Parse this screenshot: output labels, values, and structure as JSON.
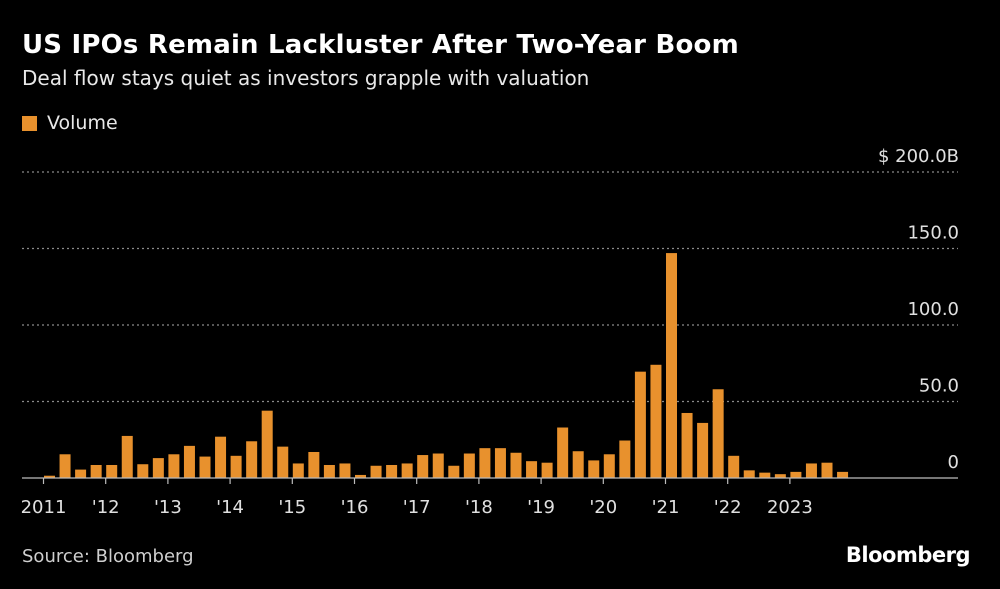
{
  "header": {
    "title": "US IPOs Remain Lackluster After Two-Year Boom",
    "subtitle": "Deal flow stays quiet as investors grapple with valuation"
  },
  "legend": {
    "label": "Volume"
  },
  "footer": {
    "source": "Source: Bloomberg",
    "brand": "Bloomberg"
  },
  "colors": {
    "bar": "#e8912d",
    "background": "#000000",
    "grid": "#8a8a8a",
    "axis": "#bdbdbd"
  },
  "chart_data": {
    "type": "bar",
    "title": "US IPOs Remain Lackluster After Two-Year Boom",
    "subtitle": "Deal flow stays quiet as investors grapple with valuation",
    "series": [
      {
        "name": "Volume",
        "unit": "$B",
        "values": [
          1.5,
          15.5,
          5.5,
          8.5,
          8.5,
          27.5,
          9,
          13,
          15.5,
          21,
          14,
          27,
          14.5,
          24,
          44,
          20.5,
          9.5,
          17,
          8.5,
          9.5,
          2,
          8,
          8.5,
          9.5,
          15,
          16,
          8,
          16,
          19.5,
          19.5,
          16.5,
          11,
          10,
          33,
          17.5,
          11.5,
          15.5,
          24.5,
          69.5,
          74,
          147,
          42.5,
          36,
          58,
          14.5,
          5,
          3.5,
          2.5,
          4,
          9.5,
          10,
          4
        ]
      }
    ],
    "year_ticks": [
      {
        "label": "2011",
        "bar_index": 0
      },
      {
        "label": "'12",
        "bar_index": 4
      },
      {
        "label": "'13",
        "bar_index": 8
      },
      {
        "label": "'14",
        "bar_index": 12
      },
      {
        "label": "'15",
        "bar_index": 16
      },
      {
        "label": "'16",
        "bar_index": 20
      },
      {
        "label": "'17",
        "bar_index": 24
      },
      {
        "label": "'18",
        "bar_index": 28
      },
      {
        "label": "'19",
        "bar_index": 32
      },
      {
        "label": "'20",
        "bar_index": 36
      },
      {
        "label": "'21",
        "bar_index": 40
      },
      {
        "label": "'22",
        "bar_index": 44
      },
      {
        "label": "2023",
        "bar_index": 48
      }
    ],
    "y_ticks": [
      {
        "value": 0,
        "label": "0"
      },
      {
        "value": 50,
        "label": "50.0"
      },
      {
        "value": 100,
        "label": "100.0"
      },
      {
        "value": 150,
        "label": "150.0"
      },
      {
        "value": 200,
        "label": "$ 200.0B"
      }
    ],
    "xlabel": "",
    "ylabel": "",
    "ylim": [
      0,
      200
    ],
    "grid": true,
    "legend_position": "top-left"
  }
}
